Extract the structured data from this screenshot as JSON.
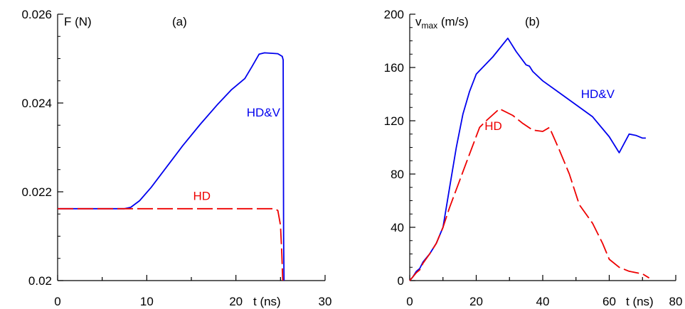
{
  "chart_data": [
    {
      "type": "line",
      "panel_label": "(a)",
      "ylabel": "F (N)",
      "xlabel": "t (ns)",
      "xlim": [
        0,
        30
      ],
      "ylim": [
        0.02,
        0.026
      ],
      "xticks": [
        0,
        10,
        20
      ],
      "xtick_labels": [
        "0",
        "10",
        "20"
      ],
      "xtick_last_label": "30",
      "yticks": [
        0.02,
        0.022,
        0.024,
        0.026
      ],
      "ytick_labels": [
        "0.02",
        "0.022",
        "0.024",
        "0.026"
      ],
      "grid": false,
      "series": [
        {
          "name": "HD&V",
          "color": "#0000ee",
          "dash": "solid",
          "label_at": [
            21.2,
            0.0237
          ],
          "x": [
            0,
            7.5,
            8.2,
            9.2,
            10.5,
            12.0,
            14.0,
            16.0,
            18.0,
            19.5,
            21.0,
            21.8,
            22.6,
            23.2,
            24.0,
            24.7,
            25.2,
            25.3,
            25.35,
            25.4
          ],
          "y": [
            0.02162,
            0.02162,
            0.02165,
            0.0218,
            0.0221,
            0.0225,
            0.02303,
            0.02352,
            0.02398,
            0.0243,
            0.02455,
            0.02482,
            0.0251,
            0.02513,
            0.02512,
            0.02511,
            0.02505,
            0.02497,
            0.021,
            0.02
          ]
        },
        {
          "name": "HD",
          "color": "#ee0000",
          "dash": "long-dash",
          "label_at": [
            15.2,
            0.02182
          ],
          "x": [
            0,
            24.3,
            24.7,
            25.0,
            25.15,
            25.25
          ],
          "y": [
            0.02162,
            0.02162,
            0.02158,
            0.02125,
            0.0206,
            0.02
          ]
        }
      ]
    },
    {
      "type": "line",
      "panel_label": "(b)",
      "ylabel_main": "v",
      "ylabel_sub": "max",
      "ylabel_unit": " (m/s)",
      "xlabel": "t (ns)",
      "xlim": [
        0,
        80
      ],
      "ylim": [
        0,
        200
      ],
      "xticks": [
        0,
        20,
        40,
        60
      ],
      "xtick_labels": [
        "0",
        "20",
        "40",
        "60"
      ],
      "xtick_last_label": "80",
      "yticks": [
        0,
        40,
        80,
        120,
        160,
        200
      ],
      "ytick_labels": [
        "0",
        "40",
        "80",
        "120",
        "160",
        "200"
      ],
      "grid": false,
      "series": [
        {
          "name": "HD&V",
          "color": "#0000ee",
          "dash": "solid",
          "label_at": [
            51.5,
            137
          ],
          "x": [
            0,
            1,
            2,
            3,
            4,
            6,
            8,
            10,
            12,
            14,
            16,
            18,
            20,
            25,
            29.5,
            32,
            35,
            36,
            37,
            40,
            45,
            50,
            55,
            60,
            63,
            66,
            68,
            70,
            71
          ],
          "y": [
            0,
            3,
            7,
            9,
            14,
            20,
            28,
            40,
            70,
            100,
            125,
            142,
            155,
            168,
            182,
            172,
            162,
            161,
            157,
            150,
            141,
            132,
            123,
            108,
            96,
            110,
            109,
            107,
            107
          ]
        },
        {
          "name": "HD",
          "color": "#ee0000",
          "dash": "long-dash",
          "label_at": [
            22.5,
            113
          ],
          "x": [
            0,
            1,
            2,
            3,
            4,
            6,
            8,
            10,
            12,
            15,
            18,
            21,
            23,
            27,
            31,
            34,
            37,
            40,
            42,
            45,
            48,
            51,
            55,
            58,
            60,
            63,
            66,
            70,
            72
          ],
          "y": [
            0,
            3,
            6,
            8,
            13,
            20,
            28,
            40,
            55,
            75,
            95,
            115,
            120,
            129,
            124,
            118,
            113,
            112,
            115,
            98,
            80,
            57,
            43,
            28,
            16,
            10,
            7,
            5,
            2
          ]
        }
      ]
    }
  ]
}
